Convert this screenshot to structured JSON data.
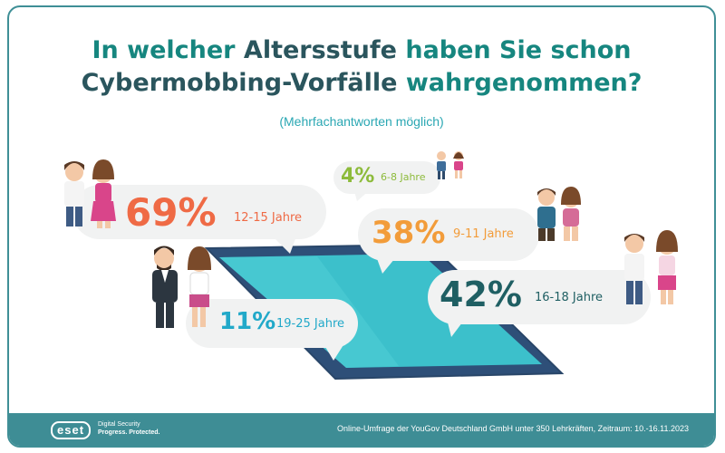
{
  "header": {
    "title_line1": [
      "In welcher",
      "Altersstufe",
      "haben Sie schon"
    ],
    "title_line2": [
      "Cybermobbing-Vorfälle",
      "wahrgenommen?"
    ],
    "subtitle": "(Mehrfachantworten möglich)"
  },
  "chart_data": {
    "type": "bar",
    "title": "In welcher Altersstufe haben Sie schon Cybermobbing-Vorfälle wahrgenommen?",
    "subtitle": "(Mehrfachantworten möglich)",
    "categories": [
      "6-8 Jahre",
      "9-11 Jahre",
      "12-15 Jahre",
      "16-18 Jahre",
      "19-25 Jahre"
    ],
    "values": [
      4,
      38,
      69,
      42,
      11
    ],
    "value_labels": [
      "4%",
      "38%",
      "69%",
      "42%",
      "11%"
    ],
    "unit": "%"
  },
  "colors": {
    "age_6_8": "#8dbb3b",
    "age_9_11": "#f29c3a",
    "age_12_15": "#ef6a45",
    "age_16_18": "#1f5f63",
    "age_19_25": "#22a9c9",
    "title_accent": "#16867f",
    "title_dark": "#2a555d",
    "footer": "#3e8d95"
  },
  "footer": {
    "logo": "eset",
    "tagline_1": "Digital Security",
    "tagline_2": "Progress. Protected.",
    "source": "Online-Umfrage der YouGov Deutschland GmbH unter 350 Lehrkräften, Zeitraum: 10.-16.11.2023"
  }
}
